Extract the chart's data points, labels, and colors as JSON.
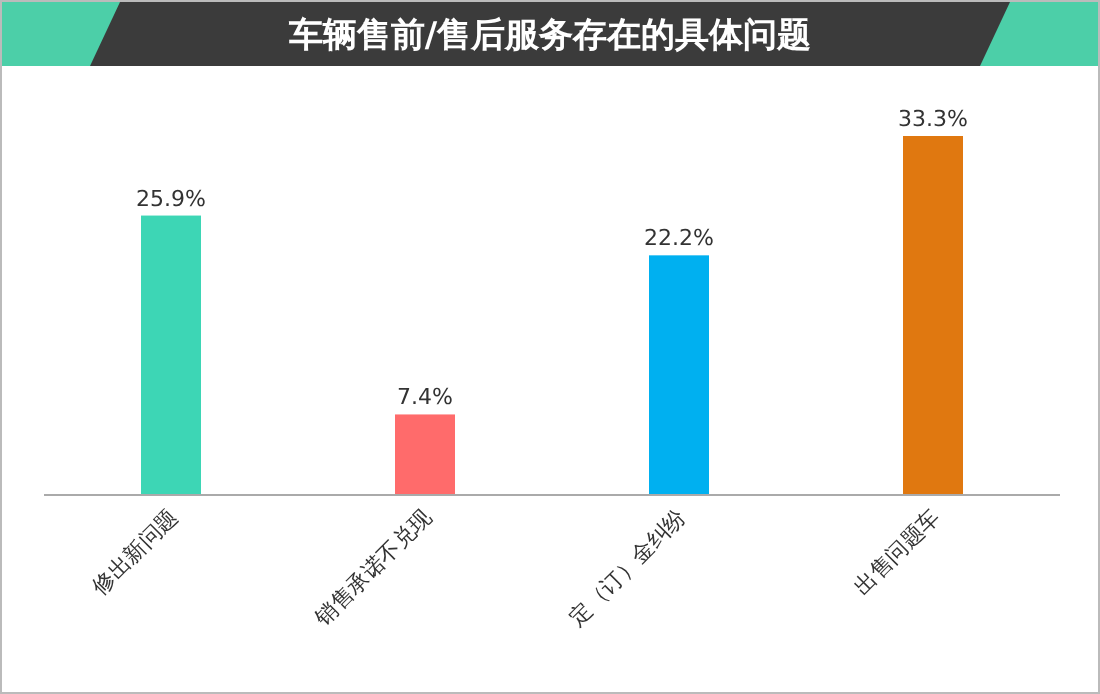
{
  "chart_data": {
    "type": "bar",
    "title": "车辆售前/售后服务存在的具体问题",
    "categories": [
      "修出新问题",
      "销售承诺不兑现",
      "定（订）金纠纷",
      "出售问题车"
    ],
    "values": [
      25.9,
      7.4,
      22.2,
      33.3
    ],
    "colors": [
      "#3dd6b5",
      "#ff6b6b",
      "#00b0f0",
      "#e07810"
    ],
    "value_labels": [
      "25.9%",
      "7.4%",
      "22.2%",
      "33.3%"
    ]
  }
}
